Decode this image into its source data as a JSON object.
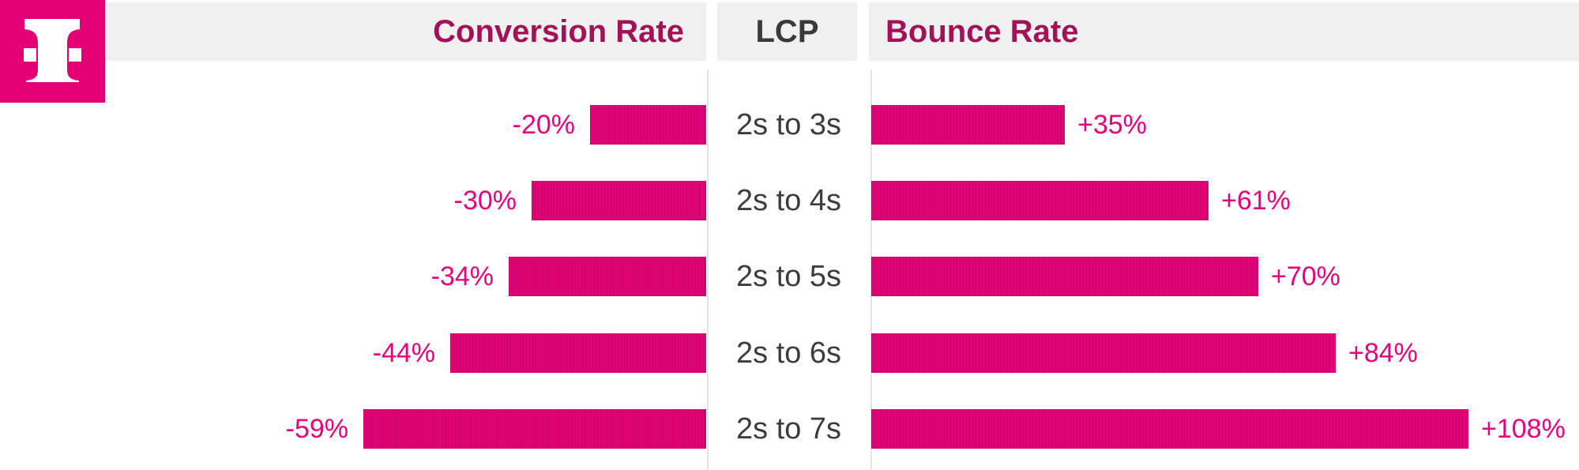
{
  "brand": {
    "logo": "telekom-t",
    "logo_color": "#E20074"
  },
  "header": {
    "conversion_label": "Conversion Rate",
    "lcp_label": "LCP",
    "bounce_label": "Bounce Rate"
  },
  "chart_data": {
    "type": "bar",
    "orientation": "horizontal",
    "variant": "diverging-butterfly",
    "title": "",
    "category_axis_label": "LCP",
    "categories": [
      "2s to 3s",
      "2s to 4s",
      "2s to 5s",
      "2s to 6s",
      "2s to 7s"
    ],
    "series": [
      {
        "name": "Conversion Rate",
        "side": "left",
        "unit": "%",
        "values": [
          -20,
          -30,
          -34,
          -44,
          -59
        ],
        "data_labels": [
          "-20%",
          "-30%",
          "-34%",
          "-44%",
          "-59%"
        ]
      },
      {
        "name": "Bounce Rate",
        "side": "right",
        "unit": "%",
        "values": [
          35,
          61,
          70,
          84,
          108
        ],
        "data_labels": [
          "+35%",
          "+61%",
          "+70%",
          "+84%",
          "+108%"
        ]
      }
    ],
    "rows": [
      {
        "category": "2s to 3s",
        "conversion_label": "-20%",
        "conversion_value": -20,
        "bounce_label": "+35%",
        "bounce_value": 35
      },
      {
        "category": "2s to 4s",
        "conversion_label": "-30%",
        "conversion_value": -30,
        "bounce_label": "+61%",
        "bounce_value": 61
      },
      {
        "category": "2s to 5s",
        "conversion_label": "-34%",
        "conversion_value": -34,
        "bounce_label": "+70%",
        "bounce_value": 70
      },
      {
        "category": "2s to 6s",
        "conversion_label": "-44%",
        "conversion_value": -44,
        "bounce_label": "+84%",
        "bounce_value": 84
      },
      {
        "category": "2s to 7s",
        "conversion_label": "-59%",
        "conversion_value": -59,
        "bounce_label": "+108%",
        "bounce_value": 108
      }
    ],
    "grid": false,
    "legend_position": "column-headers"
  },
  "colors": {
    "magenta": "#E20074",
    "bar_stripe_dark": "#CB0067",
    "bar_stripe_light": "#EA1380",
    "header_text": "#A21257",
    "lcp_header_text": "#3A3A3A",
    "header_bg": "#F0F0F0",
    "category_text": "#3C3C3C",
    "value_label": "#E6007E",
    "separator_line": "#E3E3E3"
  }
}
